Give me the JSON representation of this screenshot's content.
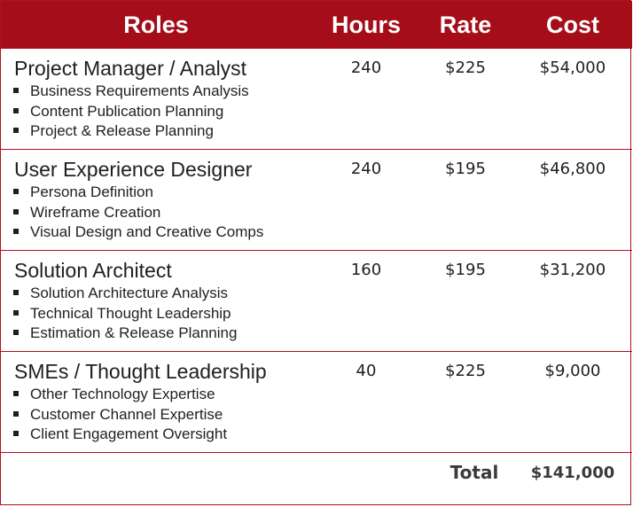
{
  "header": {
    "roles": "Roles",
    "hours": "Hours",
    "rate": "Rate",
    "cost": "Cost"
  },
  "rows": [
    {
      "role": "Project Manager / Analyst",
      "bullets": [
        "Business Requirements Analysis",
        "Content Publication Planning",
        "Project & Release Planning"
      ],
      "hours": "240",
      "rate": "$225",
      "cost": "$54,000"
    },
    {
      "role": "User Experience Designer",
      "bullets": [
        "Persona Definition",
        "Wireframe Creation",
        "Visual Design and Creative Comps"
      ],
      "hours": "240",
      "rate": "$195",
      "cost": "$46,800"
    },
    {
      "role": "Solution Architect",
      "bullets": [
        "Solution Architecture Analysis",
        "Technical Thought Leadership",
        "Estimation & Release Planning"
      ],
      "hours": "160",
      "rate": "$195",
      "cost": "$31,200"
    },
    {
      "role": "SMEs / Thought Leadership",
      "bullets": [
        "Other Technology Expertise",
        "Customer Channel Expertise",
        "Client Engagement Oversight"
      ],
      "hours": "40",
      "rate": "$225",
      "cost": "$9,000"
    }
  ],
  "total": {
    "label": "Total",
    "value": "$141,000"
  },
  "colors": {
    "header_bg": "#a50d18",
    "border": "#b0101e"
  }
}
